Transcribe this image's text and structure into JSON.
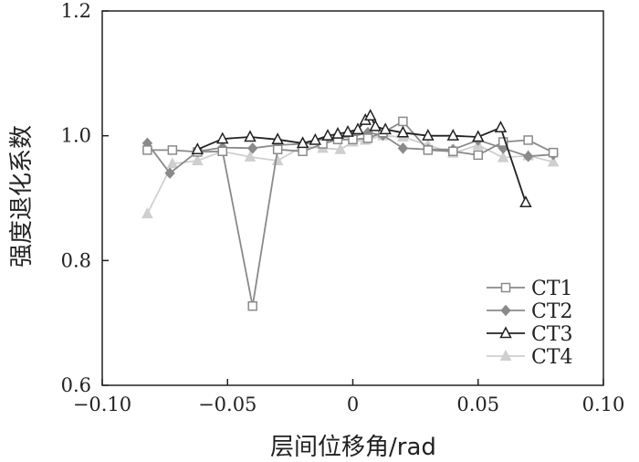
{
  "chart_data": {
    "type": "line",
    "title": "",
    "xlabel": "层间位移角/rad",
    "ylabel": "强度退化系数",
    "xlim": [
      -0.1,
      0.1
    ],
    "ylim": [
      0.6,
      1.2
    ],
    "xticks": [
      "−0.10",
      "−0.05",
      "0",
      "0.05",
      "0.10"
    ],
    "yticks": [
      "0.6",
      "0.8",
      "1.0",
      "1.2"
    ],
    "xtick_values": [
      -0.1,
      -0.05,
      0,
      0.05,
      0.1
    ],
    "ytick_values": [
      0.6,
      0.8,
      1.0,
      1.2
    ],
    "grid": false,
    "legend_position": "bottom-right",
    "series": [
      {
        "name": "CT1",
        "color": "#8a8a8a",
        "marker": "square-open",
        "points": [
          [
            -0.082,
            0.977
          ],
          [
            -0.072,
            0.977
          ],
          [
            -0.062,
            0.974
          ],
          [
            -0.052,
            0.975
          ],
          [
            -0.04,
            0.727
          ],
          [
            -0.03,
            0.978
          ],
          [
            -0.02,
            0.975
          ],
          [
            -0.012,
            0.987
          ],
          [
            -0.006,
            0.994
          ],
          [
            0.0,
            0.994
          ],
          [
            0.006,
            0.996
          ],
          [
            0.012,
            1.005
          ],
          [
            0.02,
            1.023
          ],
          [
            0.03,
            0.977
          ],
          [
            0.04,
            0.975
          ],
          [
            0.05,
            0.969
          ],
          [
            0.06,
            0.99
          ],
          [
            0.07,
            0.993
          ],
          [
            0.08,
            0.973
          ]
        ]
      },
      {
        "name": "CT2",
        "color": "#8a8a8a",
        "marker": "diamond-filled",
        "points": [
          [
            -0.082,
            0.988
          ],
          [
            -0.073,
            0.94
          ],
          [
            -0.062,
            0.975
          ],
          [
            -0.052,
            0.981
          ],
          [
            -0.04,
            0.98
          ],
          [
            -0.03,
            0.985
          ],
          [
            -0.02,
            0.987
          ],
          [
            -0.012,
            0.99
          ],
          [
            -0.006,
            0.997
          ],
          [
            0.0,
            0.999
          ],
          [
            0.006,
            1.005
          ],
          [
            0.012,
            1.001
          ],
          [
            0.02,
            0.98
          ],
          [
            0.03,
            0.978
          ],
          [
            0.04,
            0.978
          ],
          [
            0.05,
            0.993
          ],
          [
            0.06,
            0.98
          ],
          [
            0.07,
            0.967
          ],
          [
            0.08,
            0.97
          ]
        ]
      },
      {
        "name": "CT3",
        "color": "#222222",
        "marker": "triangle-open",
        "points": [
          [
            -0.062,
            0.978
          ],
          [
            -0.052,
            0.995
          ],
          [
            -0.041,
            0.998
          ],
          [
            -0.03,
            0.994
          ],
          [
            -0.02,
            0.988
          ],
          [
            -0.015,
            0.993
          ],
          [
            -0.01,
            1.0
          ],
          [
            -0.006,
            1.003
          ],
          [
            -0.002,
            1.006
          ],
          [
            0.002,
            1.01
          ],
          [
            0.005,
            1.025
          ],
          [
            0.007,
            1.032
          ],
          [
            0.009,
            1.015
          ],
          [
            0.013,
            1.01
          ],
          [
            0.02,
            1.005
          ],
          [
            0.03,
            1.0
          ],
          [
            0.04,
            1.0
          ],
          [
            0.05,
            0.998
          ],
          [
            0.059,
            1.013
          ],
          [
            0.069,
            0.893
          ]
        ]
      },
      {
        "name": "CT4",
        "color": "#cfcfcf",
        "marker": "triangle-filled",
        "points": [
          [
            -0.082,
            0.875
          ],
          [
            -0.072,
            0.955
          ],
          [
            -0.062,
            0.96
          ],
          [
            -0.052,
            0.975
          ],
          [
            -0.041,
            0.966
          ],
          [
            -0.03,
            0.96
          ],
          [
            -0.02,
            0.983
          ],
          [
            -0.012,
            0.98
          ],
          [
            -0.005,
            0.978
          ],
          [
            0.0,
            0.99
          ],
          [
            0.005,
            0.993
          ],
          [
            0.012,
            1.0
          ],
          [
            0.02,
            0.998
          ],
          [
            0.03,
            0.985
          ],
          [
            0.04,
            0.972
          ],
          [
            0.05,
            0.985
          ],
          [
            0.06,
            0.965
          ],
          [
            0.07,
            0.968
          ],
          [
            0.08,
            0.958
          ]
        ]
      }
    ]
  }
}
